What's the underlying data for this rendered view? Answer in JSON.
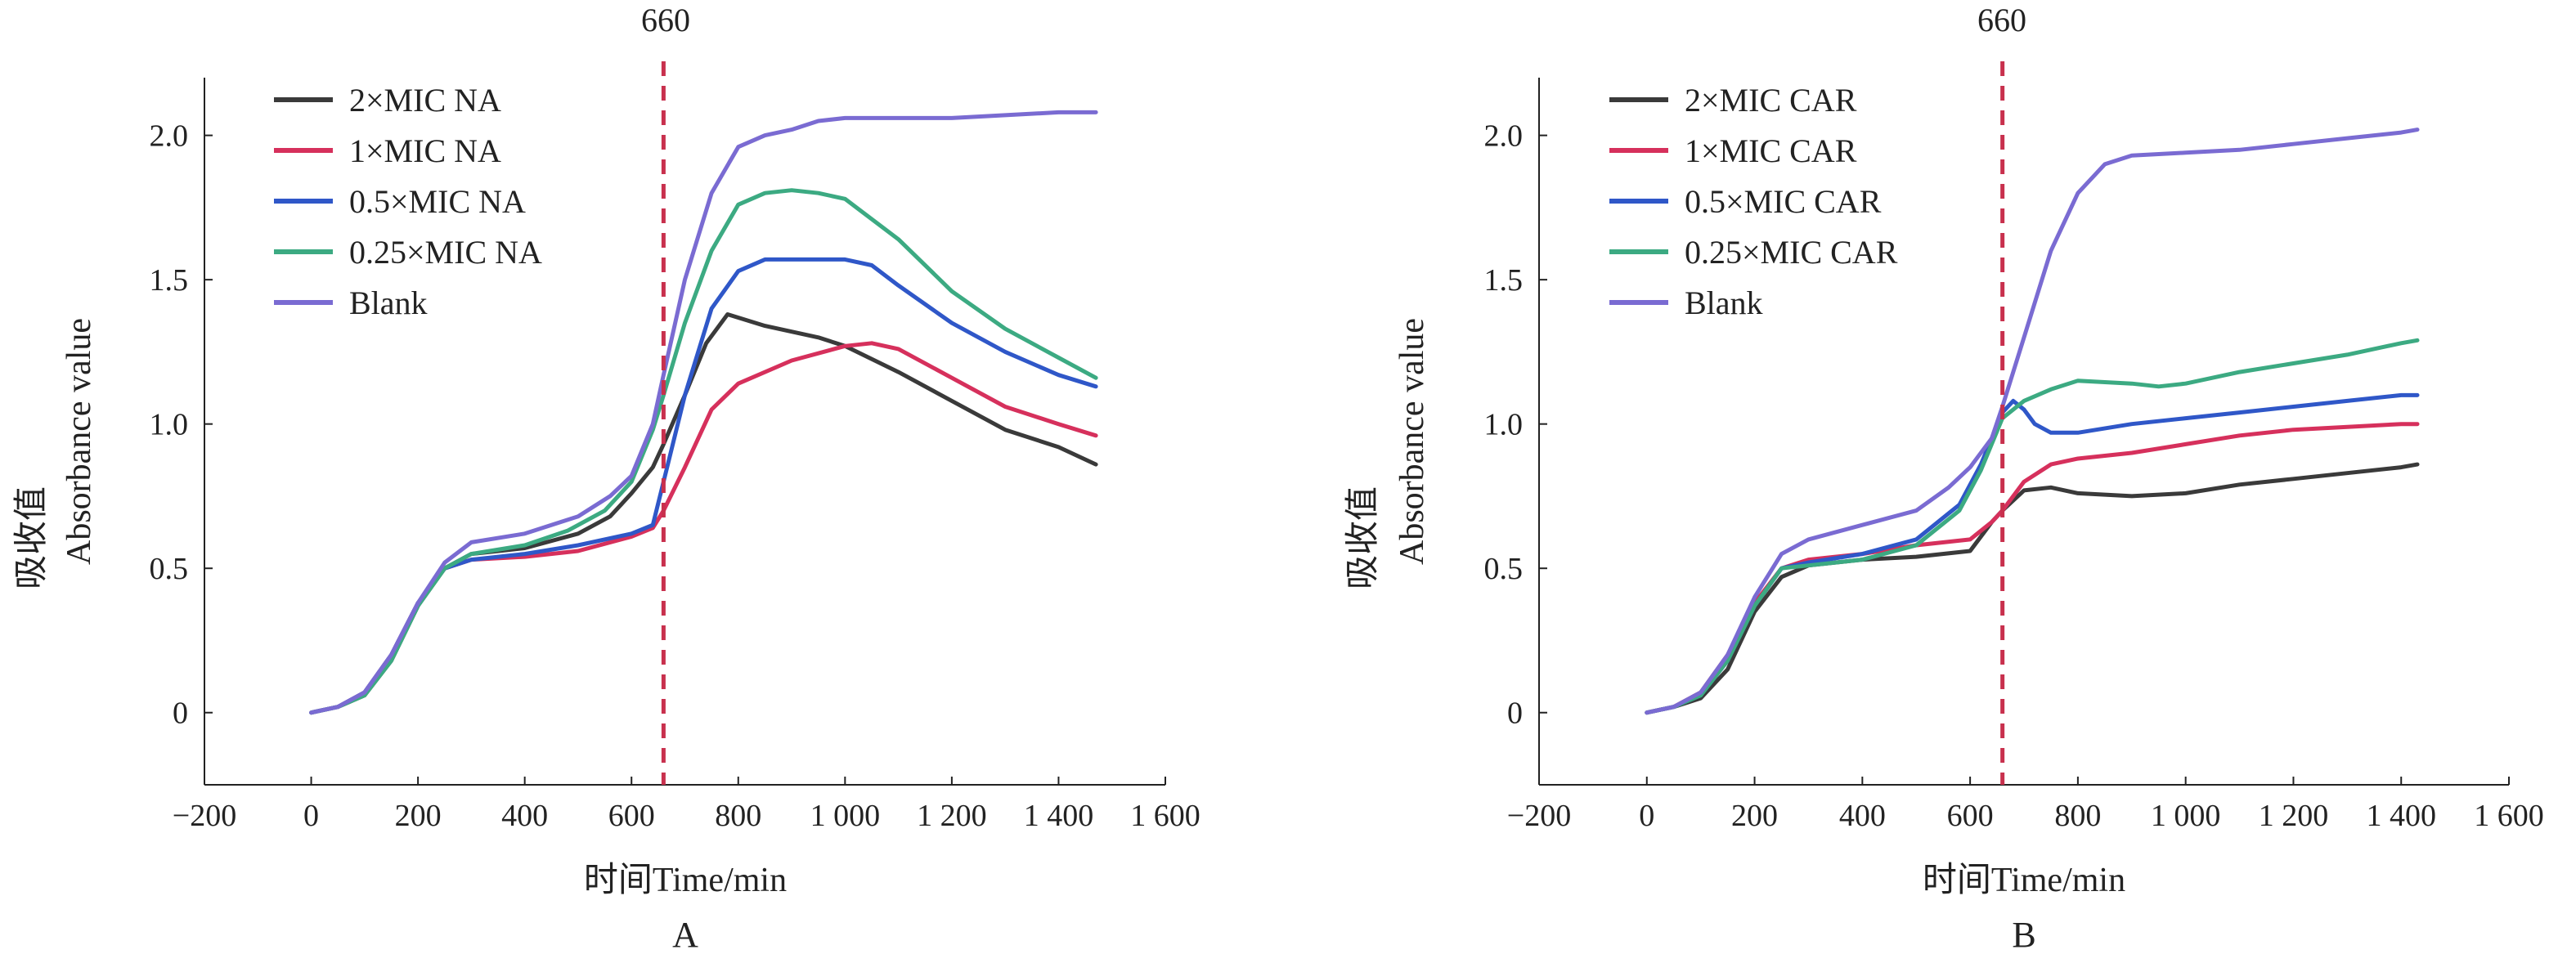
{
  "chart_data": [
    {
      "type": "line",
      "panel_label": "A",
      "xlabel": "时间Time/min",
      "ylabel_cn": "吸收值",
      "ylabel_en": "Absorbance value",
      "xlim": [
        -200,
        1600
      ],
      "ylim": [
        -0.25,
        2.2
      ],
      "x_ticks": [
        -200,
        0,
        200,
        400,
        600,
        800,
        1000,
        1200,
        1400,
        1600
      ],
      "x_tick_labels": [
        "−200",
        "0",
        "200",
        "400",
        "600",
        "800",
        "1 000",
        "1 200",
        "1 400",
        "1 600"
      ],
      "y_ticks": [
        0,
        0.5,
        1.0,
        1.5,
        2.0
      ],
      "y_tick_labels": [
        "0",
        "0.5",
        "1.0",
        "1.5",
        "2.0"
      ],
      "vline": {
        "x": 660,
        "label": "660",
        "color": "#c8304d"
      },
      "legend_position": "top-left",
      "series": [
        {
          "name": "2×MIC NA",
          "color": "#3a3a3a",
          "x": [
            0,
            50,
            100,
            150,
            200,
            250,
            300,
            400,
            500,
            560,
            600,
            640,
            660,
            700,
            740,
            780,
            850,
            950,
            1000,
            1100,
            1200,
            1300,
            1400,
            1470
          ],
          "y": [
            0,
            0.02,
            0.06,
            0.18,
            0.37,
            0.5,
            0.55,
            0.57,
            0.62,
            0.68,
            0.76,
            0.85,
            0.93,
            1.1,
            1.28,
            1.38,
            1.34,
            1.3,
            1.27,
            1.18,
            1.08,
            0.98,
            0.92,
            0.86
          ]
        },
        {
          "name": "1×MIC NA",
          "color": "#d6305c",
          "x": [
            0,
            50,
            100,
            150,
            200,
            250,
            300,
            400,
            500,
            600,
            640,
            660,
            700,
            750,
            800,
            900,
            1000,
            1050,
            1100,
            1200,
            1300,
            1400,
            1470
          ],
          "y": [
            0,
            0.02,
            0.07,
            0.2,
            0.38,
            0.5,
            0.53,
            0.54,
            0.56,
            0.61,
            0.64,
            0.7,
            0.85,
            1.05,
            1.14,
            1.22,
            1.27,
            1.28,
            1.26,
            1.16,
            1.06,
            1.0,
            0.96
          ]
        },
        {
          "name": "0.5×MIC NA",
          "color": "#2f57c8",
          "x": [
            0,
            50,
            100,
            150,
            200,
            250,
            300,
            400,
            500,
            600,
            640,
            660,
            700,
            750,
            800,
            850,
            900,
            1000,
            1050,
            1100,
            1200,
            1300,
            1400,
            1470
          ],
          "y": [
            0,
            0.02,
            0.07,
            0.2,
            0.38,
            0.5,
            0.53,
            0.55,
            0.58,
            0.62,
            0.65,
            0.8,
            1.1,
            1.4,
            1.53,
            1.57,
            1.57,
            1.57,
            1.55,
            1.48,
            1.35,
            1.25,
            1.17,
            1.13
          ]
        },
        {
          "name": "0.25×MIC NA",
          "color": "#3caa82",
          "x": [
            0,
            50,
            100,
            150,
            200,
            250,
            300,
            400,
            480,
            550,
            600,
            640,
            660,
            700,
            750,
            800,
            850,
            900,
            950,
            1000,
            1100,
            1200,
            1300,
            1400,
            1470
          ],
          "y": [
            0,
            0.02,
            0.06,
            0.18,
            0.37,
            0.5,
            0.55,
            0.58,
            0.63,
            0.7,
            0.8,
            0.98,
            1.1,
            1.35,
            1.6,
            1.76,
            1.8,
            1.81,
            1.8,
            1.78,
            1.64,
            1.46,
            1.33,
            1.23,
            1.16
          ]
        },
        {
          "name": "Blank",
          "color": "#7a6bd2",
          "x": [
            0,
            50,
            100,
            150,
            200,
            250,
            300,
            400,
            500,
            560,
            600,
            640,
            660,
            700,
            750,
            800,
            850,
            900,
            950,
            1000,
            1100,
            1200,
            1300,
            1400,
            1470
          ],
          "y": [
            0,
            0.02,
            0.07,
            0.2,
            0.38,
            0.52,
            0.59,
            0.62,
            0.68,
            0.75,
            0.82,
            1.0,
            1.17,
            1.5,
            1.8,
            1.96,
            2.0,
            2.02,
            2.05,
            2.06,
            2.06,
            2.06,
            2.07,
            2.08,
            2.08
          ]
        }
      ]
    },
    {
      "type": "line",
      "panel_label": "B",
      "xlabel": "时间Time/min",
      "ylabel_cn": "吸收值",
      "ylabel_en": "Absorbance value",
      "xlim": [
        -200,
        1600
      ],
      "ylim": [
        -0.25,
        2.2
      ],
      "x_ticks": [
        -200,
        0,
        200,
        400,
        600,
        800,
        1000,
        1200,
        1400,
        1600
      ],
      "x_tick_labels": [
        "−200",
        "0",
        "200",
        "400",
        "600",
        "800",
        "1 000",
        "1 200",
        "1 400",
        "1 600"
      ],
      "y_ticks": [
        0,
        0.5,
        1.0,
        1.5,
        2.0
      ],
      "y_tick_labels": [
        "0",
        "0.5",
        "1.0",
        "1.5",
        "2.0"
      ],
      "vline": {
        "x": 660,
        "label": "660",
        "color": "#c8304d"
      },
      "legend_position": "top-left",
      "series": [
        {
          "name": "2×MIC CAR",
          "color": "#3a3a3a",
          "x": [
            0,
            50,
            100,
            150,
            200,
            250,
            300,
            400,
            500,
            600,
            640,
            660,
            700,
            750,
            800,
            900,
            1000,
            1100,
            1200,
            1300,
            1400,
            1430
          ],
          "y": [
            0,
            0.02,
            0.05,
            0.15,
            0.35,
            0.47,
            0.51,
            0.53,
            0.54,
            0.56,
            0.66,
            0.7,
            0.77,
            0.78,
            0.76,
            0.75,
            0.76,
            0.79,
            0.81,
            0.83,
            0.85,
            0.86
          ]
        },
        {
          "name": "1×MIC CAR",
          "color": "#d6305c",
          "x": [
            0,
            50,
            100,
            150,
            200,
            250,
            300,
            400,
            500,
            600,
            640,
            660,
            700,
            750,
            800,
            900,
            1000,
            1100,
            1200,
            1300,
            1400,
            1430
          ],
          "y": [
            0,
            0.02,
            0.07,
            0.2,
            0.38,
            0.5,
            0.53,
            0.55,
            0.58,
            0.6,
            0.66,
            0.7,
            0.8,
            0.86,
            0.88,
            0.9,
            0.93,
            0.96,
            0.98,
            0.99,
            1.0,
            1.0
          ]
        },
        {
          "name": "0.5×MIC CAR",
          "color": "#2f57c8",
          "x": [
            0,
            50,
            100,
            150,
            200,
            250,
            300,
            400,
            500,
            580,
            620,
            660,
            680,
            700,
            720,
            750,
            800,
            900,
            1000,
            1100,
            1200,
            1300,
            1400,
            1430
          ],
          "y": [
            0,
            0.02,
            0.06,
            0.18,
            0.37,
            0.5,
            0.52,
            0.55,
            0.6,
            0.72,
            0.86,
            1.04,
            1.08,
            1.05,
            1.0,
            0.97,
            0.97,
            1.0,
            1.02,
            1.04,
            1.06,
            1.08,
            1.1,
            1.1
          ]
        },
        {
          "name": "0.25×MIC CAR",
          "color": "#3caa82",
          "x": [
            0,
            50,
            100,
            150,
            200,
            250,
            300,
            400,
            500,
            580,
            620,
            660,
            700,
            750,
            800,
            900,
            950,
            1000,
            1100,
            1200,
            1300,
            1400,
            1430
          ],
          "y": [
            0,
            0.02,
            0.06,
            0.18,
            0.37,
            0.5,
            0.51,
            0.53,
            0.58,
            0.7,
            0.84,
            1.02,
            1.08,
            1.12,
            1.15,
            1.14,
            1.13,
            1.14,
            1.18,
            1.21,
            1.24,
            1.28,
            1.29
          ]
        },
        {
          "name": "Blank",
          "color": "#7a6bd2",
          "x": [
            0,
            50,
            100,
            150,
            200,
            250,
            300,
            400,
            500,
            560,
            600,
            640,
            660,
            700,
            750,
            800,
            850,
            900,
            1000,
            1100,
            1200,
            1300,
            1400,
            1430
          ],
          "y": [
            0,
            0.02,
            0.07,
            0.2,
            0.4,
            0.55,
            0.6,
            0.65,
            0.7,
            0.78,
            0.85,
            0.95,
            1.06,
            1.3,
            1.6,
            1.8,
            1.9,
            1.93,
            1.94,
            1.95,
            1.97,
            1.99,
            2.01,
            2.02
          ]
        }
      ]
    }
  ]
}
